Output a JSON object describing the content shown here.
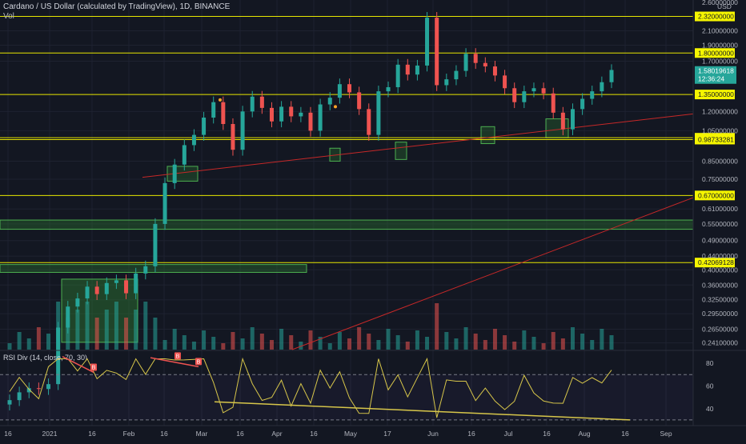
{
  "header": {
    "title": "Cardano / US Dollar (calculated by TradingView), 1D, BINANCE",
    "vol_label": "Vol"
  },
  "price_axis": {
    "currency": "USD",
    "top_cut_label": "2.60000000",
    "ticks": [
      "2.10000000",
      "1.90000000",
      "1.70000000",
      "1.20000000",
      "1.05000000",
      "0.85000000",
      "0.75000000",
      "0.61000000",
      "0.55000000",
      "0.49000000",
      "0.44000000",
      "0.40000000",
      "0.36000000",
      "0.32500000",
      "0.29500000",
      "0.26500000",
      "0.24100000"
    ],
    "levels": [
      {
        "label": "2.32000000"
      },
      {
        "label": "1.80000000"
      },
      {
        "label": "1.35000000"
      },
      {
        "label": "1.00000000"
      },
      {
        "label": "0.98733281"
      },
      {
        "label": "0.67000000"
      },
      {
        "label": "0.42069128"
      }
    ],
    "current_price": "1.58019618",
    "countdown": "12:36:24"
  },
  "rsi": {
    "label": "RSI Div (14, close, 70, 30)",
    "ticks": [
      "80",
      "60",
      "40"
    ],
    "marker_letter": "B"
  },
  "time_axis": {
    "labels": [
      "16",
      "2021",
      "16",
      "Feb",
      "16",
      "Mar",
      "16",
      "Apr",
      "16",
      "May",
      "17",
      "Jun",
      "16",
      "Jul",
      "16",
      "Aug",
      "16",
      "Sep"
    ]
  },
  "chart_data": {
    "type": "candlestick",
    "symbol": "Cardano / US Dollar",
    "interval": "1D",
    "exchange": "BINANCE",
    "y_scale": "log",
    "ylim": [
      0.23,
      2.6
    ],
    "horizontal_levels": [
      2.32,
      1.8,
      1.35,
      1.0,
      0.98733281,
      0.67,
      0.42069128
    ],
    "last_price": 1.58019618,
    "approx_closes_every_3_days": [
      0.162,
      0.171,
      0.176,
      0.175,
      0.181,
      0.268,
      0.31,
      0.328,
      0.356,
      0.338,
      0.365,
      0.372,
      0.34,
      0.39,
      0.41,
      0.55,
      0.73,
      0.83,
      0.95,
      1.02,
      1.15,
      1.28,
      1.1,
      0.92,
      1.2,
      1.33,
      1.23,
      1.12,
      1.24,
      1.16,
      1.19,
      1.05,
      1.26,
      1.32,
      1.45,
      1.37,
      1.22,
      1.02,
      1.38,
      1.42,
      1.66,
      1.55,
      1.65,
      2.3,
      1.44,
      1.5,
      1.59,
      1.79,
      1.68,
      1.64,
      1.54,
      1.41,
      1.28,
      1.38,
      1.41,
      1.36,
      1.19,
      1.06,
      1.22,
      1.31,
      1.38,
      1.47,
      1.6
    ],
    "rsi_settings": {
      "length": 14,
      "source": "close",
      "overbought": 70,
      "oversold": 30
    },
    "rsi_ylim": [
      25,
      90
    ]
  },
  "colors": {
    "bull": "#26a69a",
    "bear": "#ef5350",
    "level_line": "#e6e600",
    "level_label_bg": "#f5f500",
    "trendline": "#c62828",
    "zone": "#2e7d32",
    "rsi_line": "#d7c64a",
    "current_price_bg": "#26a69a"
  }
}
